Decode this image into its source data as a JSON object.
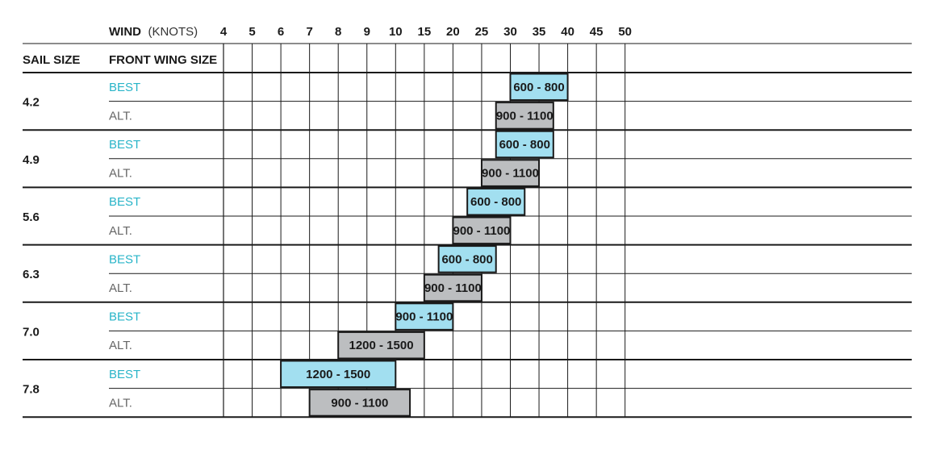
{
  "header": {
    "wind_label": "WIND",
    "wind_unit": "(KNOTS)",
    "sail_size_label": "SAIL SIZE",
    "front_wing_label": "FRONT WING SIZE"
  },
  "colors": {
    "best": "#a2dff0",
    "alt": "#bcbec0",
    "best_text": "#28b4c8",
    "alt_text": "#666666",
    "line": "#1a1a1a"
  },
  "chart_data": {
    "type": "table",
    "x_ticks": [
      4,
      5,
      6,
      7,
      8,
      9,
      10,
      15,
      20,
      25,
      30,
      35,
      40,
      45,
      50
    ],
    "rows": [
      {
        "sail_size": "4.2",
        "entries": [
          {
            "label": "BEST",
            "range": "600 - 800",
            "from": 30,
            "to": 40
          },
          {
            "label": "ALT.",
            "range": "900 - 1100",
            "from": 27.5,
            "to": 37.5
          }
        ]
      },
      {
        "sail_size": "4.9",
        "entries": [
          {
            "label": "BEST",
            "range": "600 - 800",
            "from": 27.5,
            "to": 37.5
          },
          {
            "label": "ALT.",
            "range": "900 - 1100",
            "from": 25,
            "to": 35
          }
        ]
      },
      {
        "sail_size": "5.6",
        "entries": [
          {
            "label": "BEST",
            "range": "600 - 800",
            "from": 22.5,
            "to": 32.5
          },
          {
            "label": "ALT.",
            "range": "900 - 1100",
            "from": 20,
            "to": 30
          }
        ]
      },
      {
        "sail_size": "6.3",
        "entries": [
          {
            "label": "BEST",
            "range": "600 - 800",
            "from": 17.5,
            "to": 27.5
          },
          {
            "label": "ALT.",
            "range": "900 - 1100",
            "from": 15,
            "to": 25
          }
        ]
      },
      {
        "sail_size": "7.0",
        "entries": [
          {
            "label": "BEST",
            "range": "900 - 1100",
            "from": 10,
            "to": 20
          },
          {
            "label": "ALT.",
            "range": "1200 - 1500",
            "from": 8,
            "to": 15
          }
        ]
      },
      {
        "sail_size": "7.8",
        "entries": [
          {
            "label": "BEST",
            "range": "1200 - 1500",
            "from": 6,
            "to": 10
          },
          {
            "label": "ALT.",
            "range": "900 - 1100",
            "from": 7,
            "to": 12.5
          }
        ]
      }
    ]
  }
}
